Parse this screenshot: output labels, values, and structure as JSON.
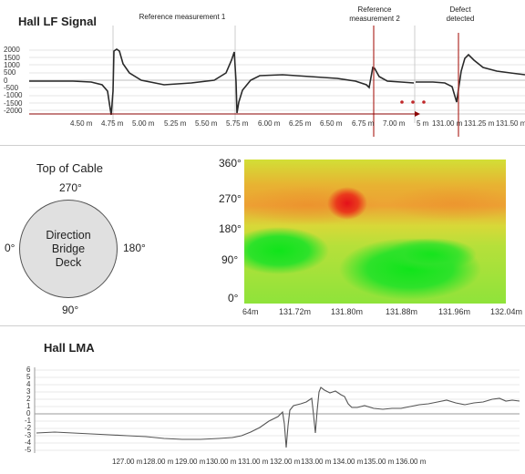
{
  "hall_lf": {
    "title": "Hall LF Signal",
    "annotations": {
      "ref1": "Reference measurement 1",
      "ref2_line1": "Reference",
      "ref2_line2": "measurement 2",
      "defect_line1": "Defect",
      "defect_line2": "detected"
    },
    "y_ticks": [
      "2000",
      "1500",
      "1000",
      "500",
      "0",
      "-500",
      "-1000",
      "-1500",
      "-2000"
    ],
    "x_ticks": [
      "4.50 m",
      "4.75 m",
      "5.00 m",
      "5.25 m",
      "5.50 m",
      "5.75 m",
      "6.00 m",
      "6.25 m",
      "6.50 m",
      "6.75 m",
      "7.00 m",
      "5 m",
      "131.00 m",
      "131.25 m",
      "131.50 m"
    ],
    "colors": {
      "trace": "#2a2a2a",
      "marker": "#b0302a",
      "dots": "#c0282a",
      "arrow": "#8b0000"
    }
  },
  "direction": {
    "title": "Top of Cable",
    "circle_line1": "Direction",
    "circle_line2": "Bridge",
    "circle_line3": "Deck",
    "deg_top": "270°",
    "deg_left": "0°",
    "deg_right": "180°",
    "deg_bottom": "90°"
  },
  "heatmap": {
    "y_ticks": [
      "360°",
      "270°",
      "180°",
      "90°",
      "0°"
    ],
    "x_ticks": [
      "64m",
      "131.72m",
      "131.80m",
      "131.88m",
      "131.96m",
      "132.04m"
    ],
    "colors": {
      "low": "#22e020",
      "mid": "#e8e030",
      "high": "#e02010"
    }
  },
  "hall_lma": {
    "title": "Hall LMA",
    "y_ticks": [
      "6",
      "5",
      "4",
      "3",
      "2",
      "1",
      "0",
      "-1",
      "-2",
      "-3",
      "-4",
      "-5"
    ],
    "x_ticks": [
      "127.00 m",
      "128.00 m",
      "129.00 m",
      "130.00 m",
      "131.00 m",
      "132.00 m",
      "133.00 m",
      "134.00 m",
      "135.00 m",
      "136.00 m"
    ]
  }
}
